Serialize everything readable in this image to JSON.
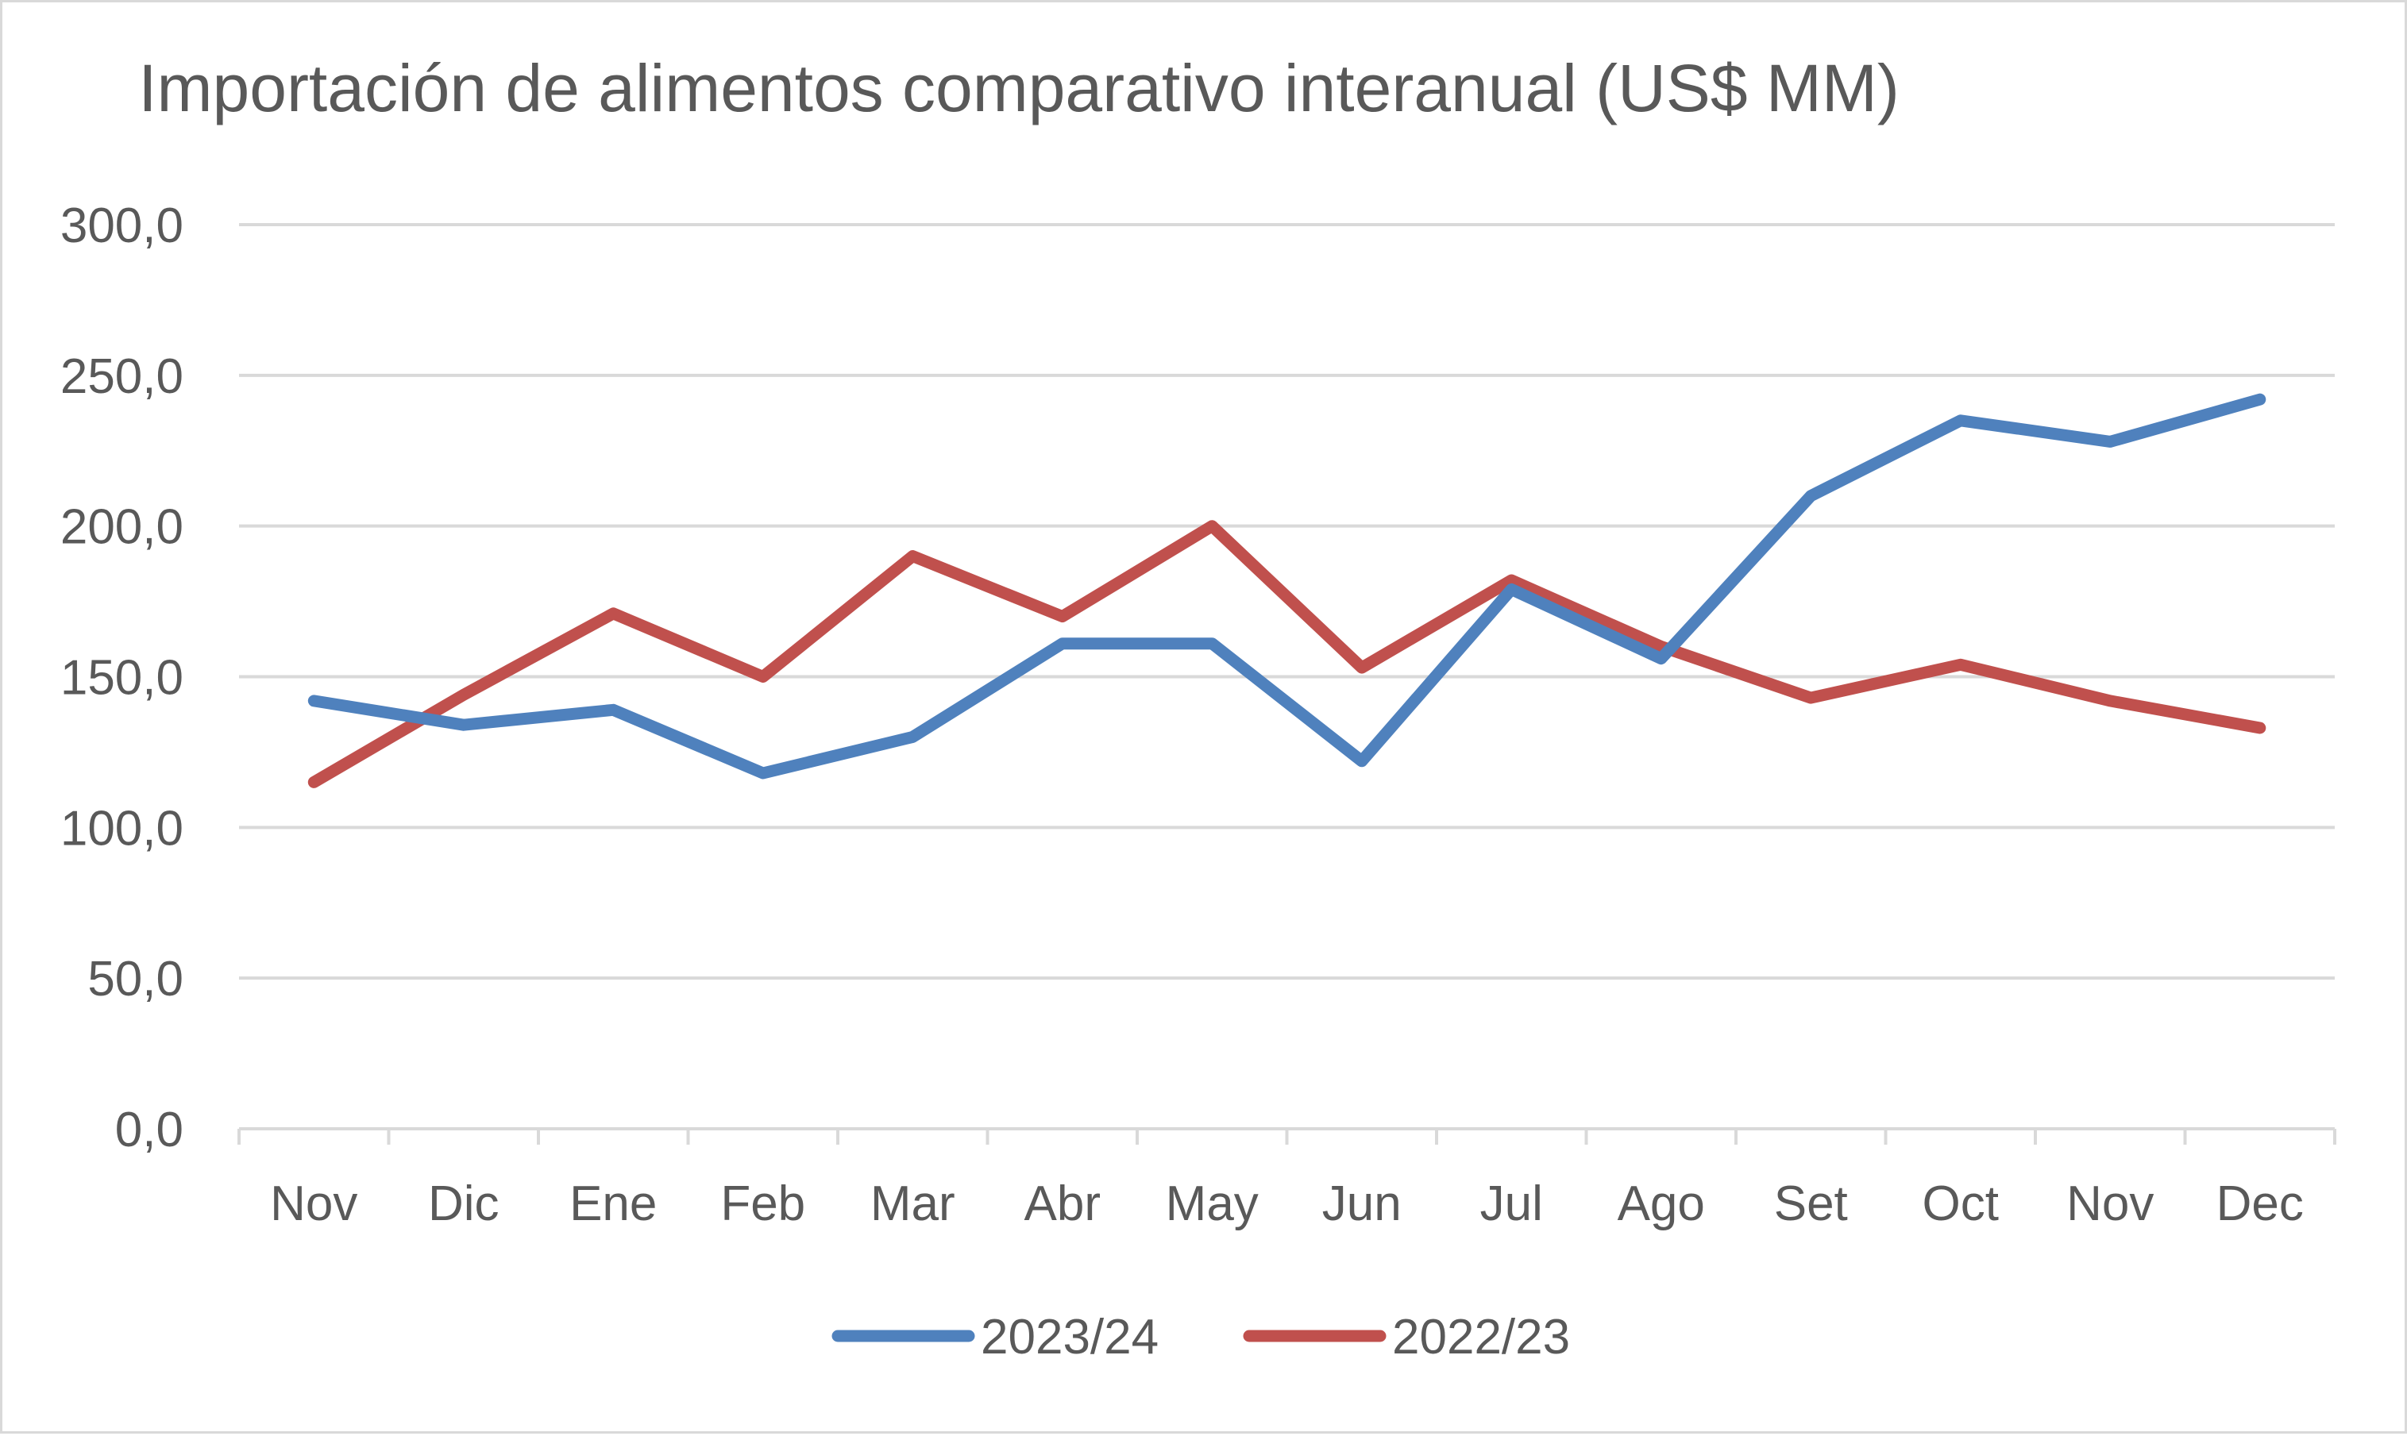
{
  "chart_data": {
    "type": "line",
    "title": "Importación de alimentos comparativo interanual (US$ MM)",
    "xlabel": "",
    "ylabel": "",
    "categories": [
      "Nov",
      "Dic",
      "Ene",
      "Feb",
      "Mar",
      "Abr",
      "May",
      "Jun",
      "Jul",
      "Ago",
      "Set",
      "Oct",
      "Nov",
      "Dec"
    ],
    "ylim": [
      0,
      300
    ],
    "yticks": [
      "0,0",
      "50,0",
      "100,0",
      "150,0",
      "200,0",
      "250,0",
      "300,0"
    ],
    "grid": true,
    "legend_position": "bottom",
    "series": [
      {
        "name": "2023/24",
        "color": "#4f81bd",
        "values": [
          142,
          134,
          139,
          118,
          130,
          161,
          161,
          122,
          179,
          156,
          210,
          235,
          228,
          242
        ]
      },
      {
        "name": "2022/23",
        "color": "#c0504d",
        "values": [
          115,
          144,
          171,
          150,
          190,
          170,
          200,
          153,
          182,
          160,
          143,
          154,
          142,
          133
        ]
      }
    ]
  }
}
